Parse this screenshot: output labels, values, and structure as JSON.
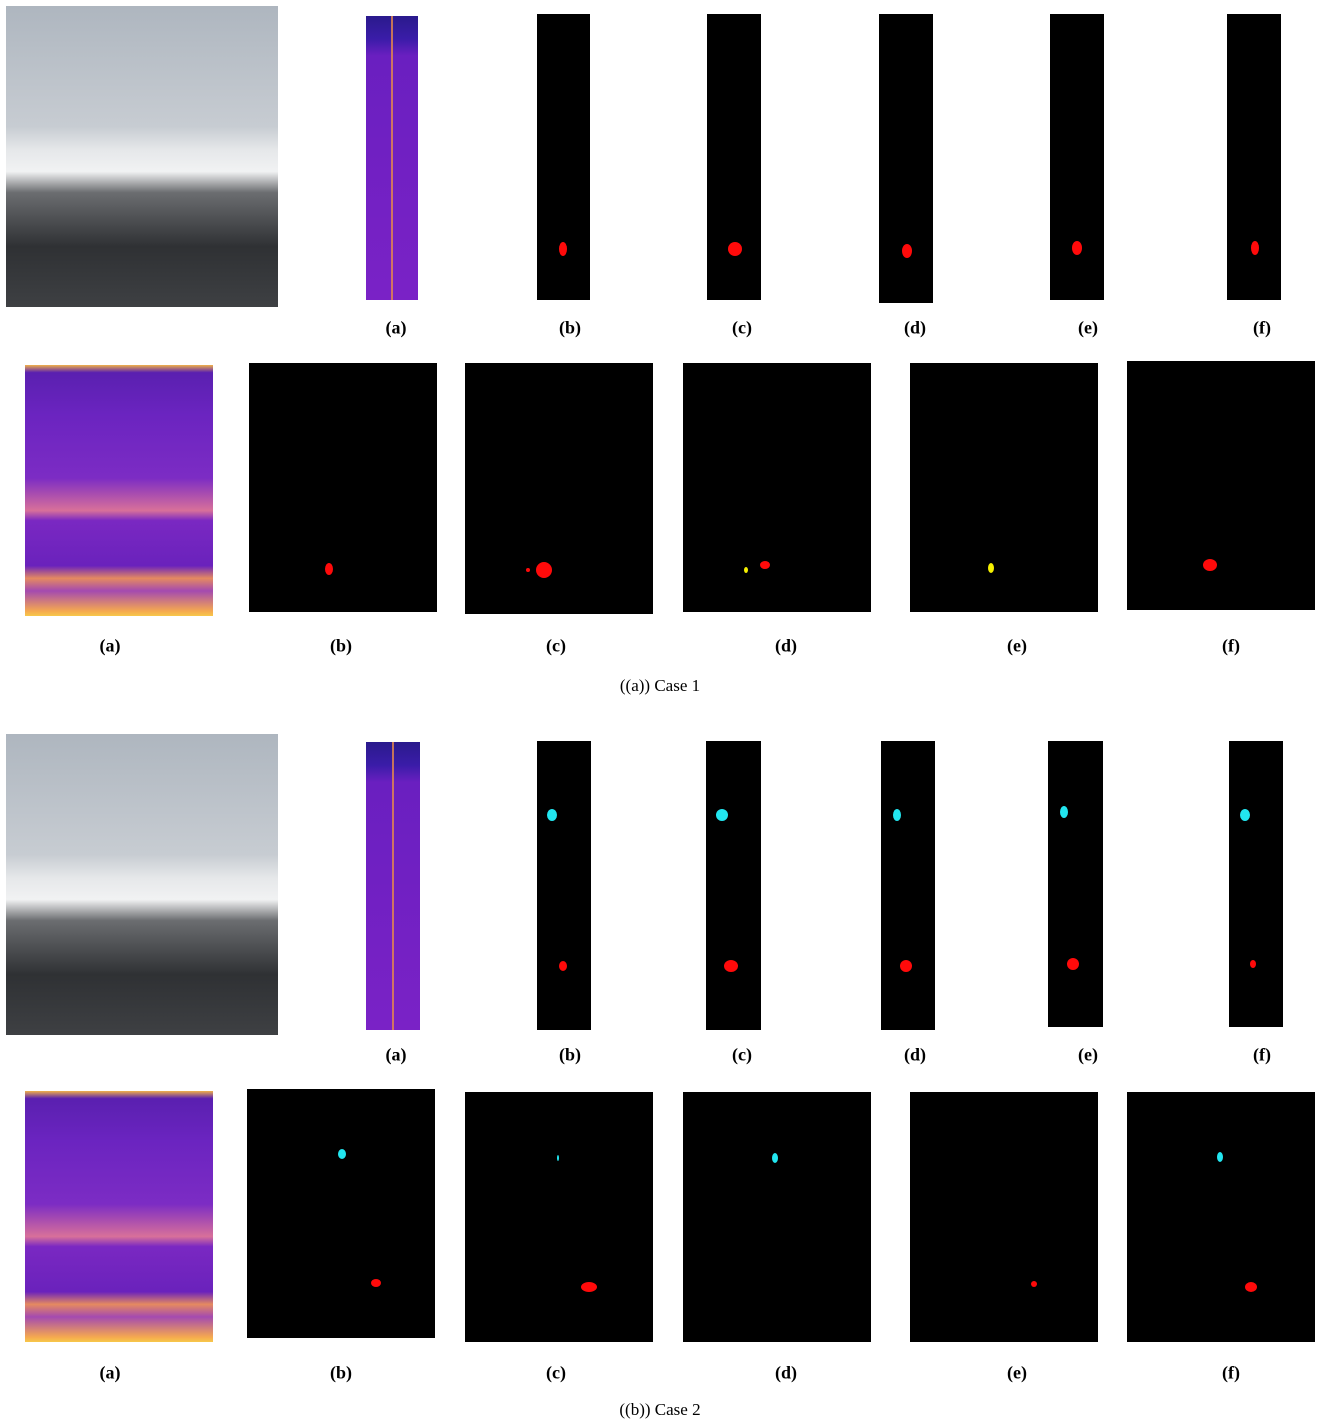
{
  "figure": {
    "cases": [
      {
        "rows": [
          {
            "labels": [
              "(a)",
              "(b)",
              "(c)",
              "(d)",
              "(e)",
              "(f)"
            ]
          },
          {
            "labels": [
              "(a)",
              "(b)",
              "(c)",
              "(d)",
              "(e)",
              "(f)"
            ]
          }
        ],
        "caption": "((a)) Case 1"
      },
      {
        "rows": [
          {
            "labels": [
              "(a)",
              "(b)",
              "(c)",
              "(d)",
              "(e)",
              "(f)"
            ]
          },
          {
            "labels": [
              "(a)",
              "(b)",
              "(c)",
              "(d)",
              "(e)",
              "(f)"
            ]
          }
        ],
        "caption": "((b)) Case 2"
      }
    ]
  }
}
